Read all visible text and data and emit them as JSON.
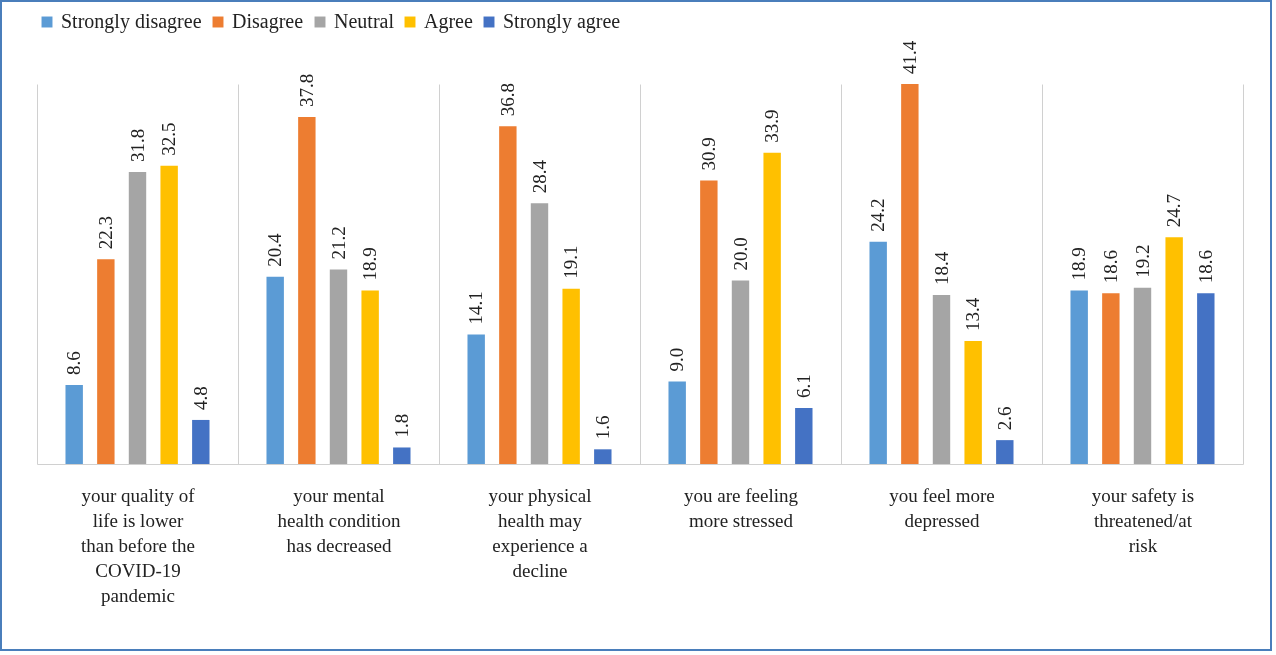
{
  "chart_data": {
    "type": "bar",
    "categories": [
      "your quality of life is lower than before the COVID-19 pandemic",
      "your mental health condition has decreased",
      "your physical health may experience a decline",
      "you are feeling more stressed",
      "you feel more depressed",
      "your safety is threatened/at risk"
    ],
    "series": [
      {
        "name": "Strongly disagree",
        "color": "#5b9bd5",
        "values": [
          8.6,
          20.4,
          14.1,
          9.0,
          24.2,
          18.9
        ],
        "value_labels": [
          "8.6",
          "20.4",
          "14.1",
          "9.0",
          "24.2",
          "18.9"
        ]
      },
      {
        "name": "Disagree",
        "color": "#ed7d31",
        "values": [
          22.3,
          37.8,
          36.8,
          30.9,
          41.4,
          18.6
        ],
        "value_labels": [
          "22.3",
          "37.8",
          "36.8",
          "30.9",
          "41.4",
          "18.6"
        ]
      },
      {
        "name": "Neutral",
        "color": "#a5a5a5",
        "values": [
          31.8,
          21.2,
          28.4,
          20.0,
          18.4,
          19.2
        ],
        "value_labels": [
          "31.8",
          "21.2",
          "28.4",
          "20.0",
          "18.4",
          "19.2"
        ]
      },
      {
        "name": "Agree",
        "color": "#ffc000",
        "values": [
          32.5,
          18.9,
          19.1,
          33.9,
          13.4,
          24.7
        ],
        "value_labels": [
          "32.5",
          "18.9",
          "19.1",
          "33.9",
          "13.4",
          "24.7"
        ]
      },
      {
        "name": "Strongly agree",
        "color": "#4472c4",
        "values": [
          4.8,
          1.8,
          1.6,
          6.1,
          2.6,
          18.6
        ],
        "value_labels": [
          "4.8",
          "1.8",
          "1.6",
          "6.1",
          "2.6",
          "18.6"
        ]
      }
    ],
    "legend": "top",
    "grid": "x"
  }
}
